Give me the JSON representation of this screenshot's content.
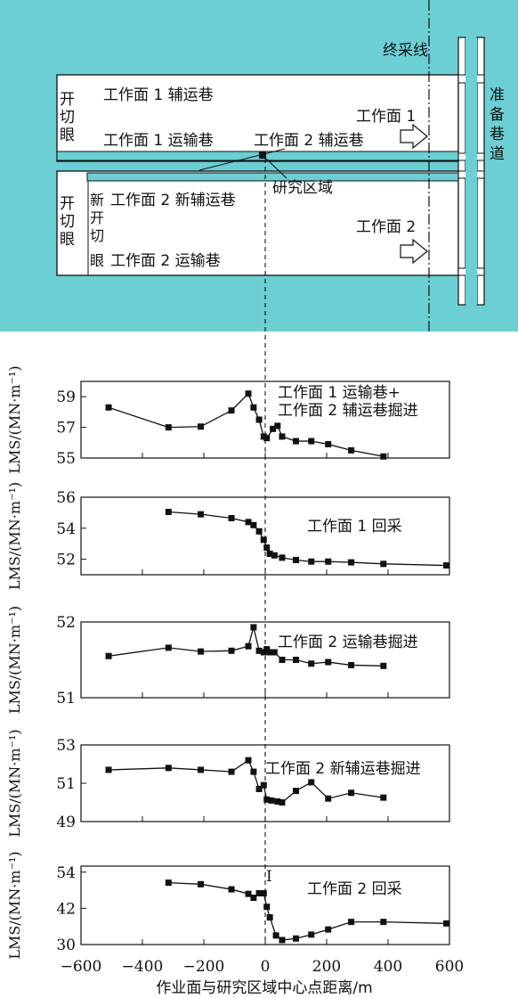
{
  "map": {
    "colors": {
      "background": "#6ccfd4",
      "panel": "#ffffff",
      "line": "#111111"
    },
    "final_mining_line": "终采线",
    "cut_eye_1": [
      "开",
      "切",
      "眼"
    ],
    "cut_eye_2": [
      "开",
      "切",
      "眼"
    ],
    "new_cut_eye": [
      "新",
      "开",
      "切",
      "眼"
    ],
    "prep_roadway": [
      "准",
      "备",
      "巷",
      "道"
    ],
    "labels": {
      "wf1_aux": "工作面 1 辅运巷",
      "wf1_transport": "工作面 1 运输巷",
      "wf2_aux": "工作面 2 辅运巷",
      "wf2_new_aux": "工作面 2 新辅运巷",
      "wf2_transport": "工作面 2 运输巷",
      "wf1": "工作面 1",
      "wf2": "工作面 2",
      "study_area": "研究区域"
    }
  },
  "chart_data": [
    {
      "type": "line",
      "ylabel": "LMS/(MN·m⁻¹)",
      "annotation": [
        "工作面 1 运输巷+",
        "工作面 2 辅运巷掘进"
      ],
      "ylim": [
        55,
        60
      ],
      "yticks": [
        55,
        57,
        59
      ],
      "x": [
        -510,
        -315,
        -210,
        -110,
        -55,
        -38,
        -20,
        -5,
        5,
        25,
        40,
        55,
        100,
        150,
        205,
        280,
        385
      ],
      "y": [
        58.3,
        57.0,
        57.05,
        58.1,
        59.2,
        58.3,
        57.5,
        56.4,
        56.3,
        56.9,
        57.1,
        56.4,
        56.1,
        56.1,
        55.9,
        55.5,
        55.1
      ]
    },
    {
      "type": "line",
      "ylabel": "LMS/(MN·m⁻¹)",
      "annotation": [
        "工作面 1 回采"
      ],
      "ylim": [
        51,
        56
      ],
      "yticks": [
        52,
        54,
        56
      ],
      "x": [
        -315,
        -210,
        -110,
        -55,
        -38,
        -20,
        -5,
        5,
        15,
        30,
        55,
        100,
        150,
        205,
        280,
        385,
        590
      ],
      "y": [
        55.05,
        54.9,
        54.65,
        54.4,
        54.2,
        53.8,
        53.25,
        52.75,
        52.35,
        52.25,
        52.1,
        51.95,
        51.85,
        51.85,
        51.8,
        51.7,
        51.6
      ]
    },
    {
      "type": "line",
      "ylabel": "LMS/(MN·m⁻¹)",
      "annotation": [
        "工作面 2 运输巷掘进"
      ],
      "ylim": [
        51,
        52
      ],
      "yticks": [
        51,
        52
      ],
      "x": [
        -510,
        -315,
        -210,
        -110,
        -55,
        -38,
        -20,
        -5,
        5,
        15,
        30,
        55,
        100,
        150,
        205,
        280,
        385
      ],
      "y": [
        51.55,
        51.66,
        51.61,
        51.62,
        51.68,
        51.93,
        51.62,
        51.6,
        51.64,
        51.6,
        51.6,
        51.5,
        51.5,
        51.45,
        51.47,
        51.43,
        51.42
      ]
    },
    {
      "type": "line",
      "ylabel": "LMS/(MN·m⁻¹)",
      "annotation": [
        "工作面 2 新辅运巷掘进"
      ],
      "ylim": [
        49,
        53
      ],
      "yticks": [
        49,
        51,
        53
      ],
      "x": [
        -510,
        -315,
        -210,
        -110,
        -55,
        -38,
        -20,
        -5,
        5,
        20,
        40,
        55,
        100,
        150,
        205,
        280,
        385
      ],
      "y": [
        51.7,
        51.8,
        51.7,
        51.6,
        52.2,
        51.6,
        50.7,
        50.9,
        50.15,
        50.1,
        50.05,
        50.0,
        50.6,
        51.05,
        50.2,
        50.5,
        50.25
      ]
    },
    {
      "type": "line",
      "ylabel": "LMS/(MN·m⁻¹)",
      "annotation": [
        "工作面 2 回采"
      ],
      "point_label": "I",
      "ylim": [
        30,
        56
      ],
      "yticks": [
        30,
        42,
        54
      ],
      "x": [
        -315,
        -210,
        -110,
        -55,
        -38,
        -20,
        -5,
        5,
        15,
        35,
        55,
        100,
        150,
        205,
        280,
        385,
        590
      ],
      "y": [
        50.5,
        50.0,
        48.3,
        46.8,
        45.5,
        47.0,
        47.0,
        42.5,
        39.0,
        33.0,
        31.5,
        32.0,
        33.3,
        35.0,
        37.5,
        37.5,
        37.0
      ]
    }
  ],
  "xaxis": {
    "xlim": [
      -600,
      600
    ],
    "ticks": [
      -600,
      -400,
      -200,
      0,
      200,
      400,
      600
    ],
    "xlabel": "作业面与研究区域中心点距离/m"
  }
}
